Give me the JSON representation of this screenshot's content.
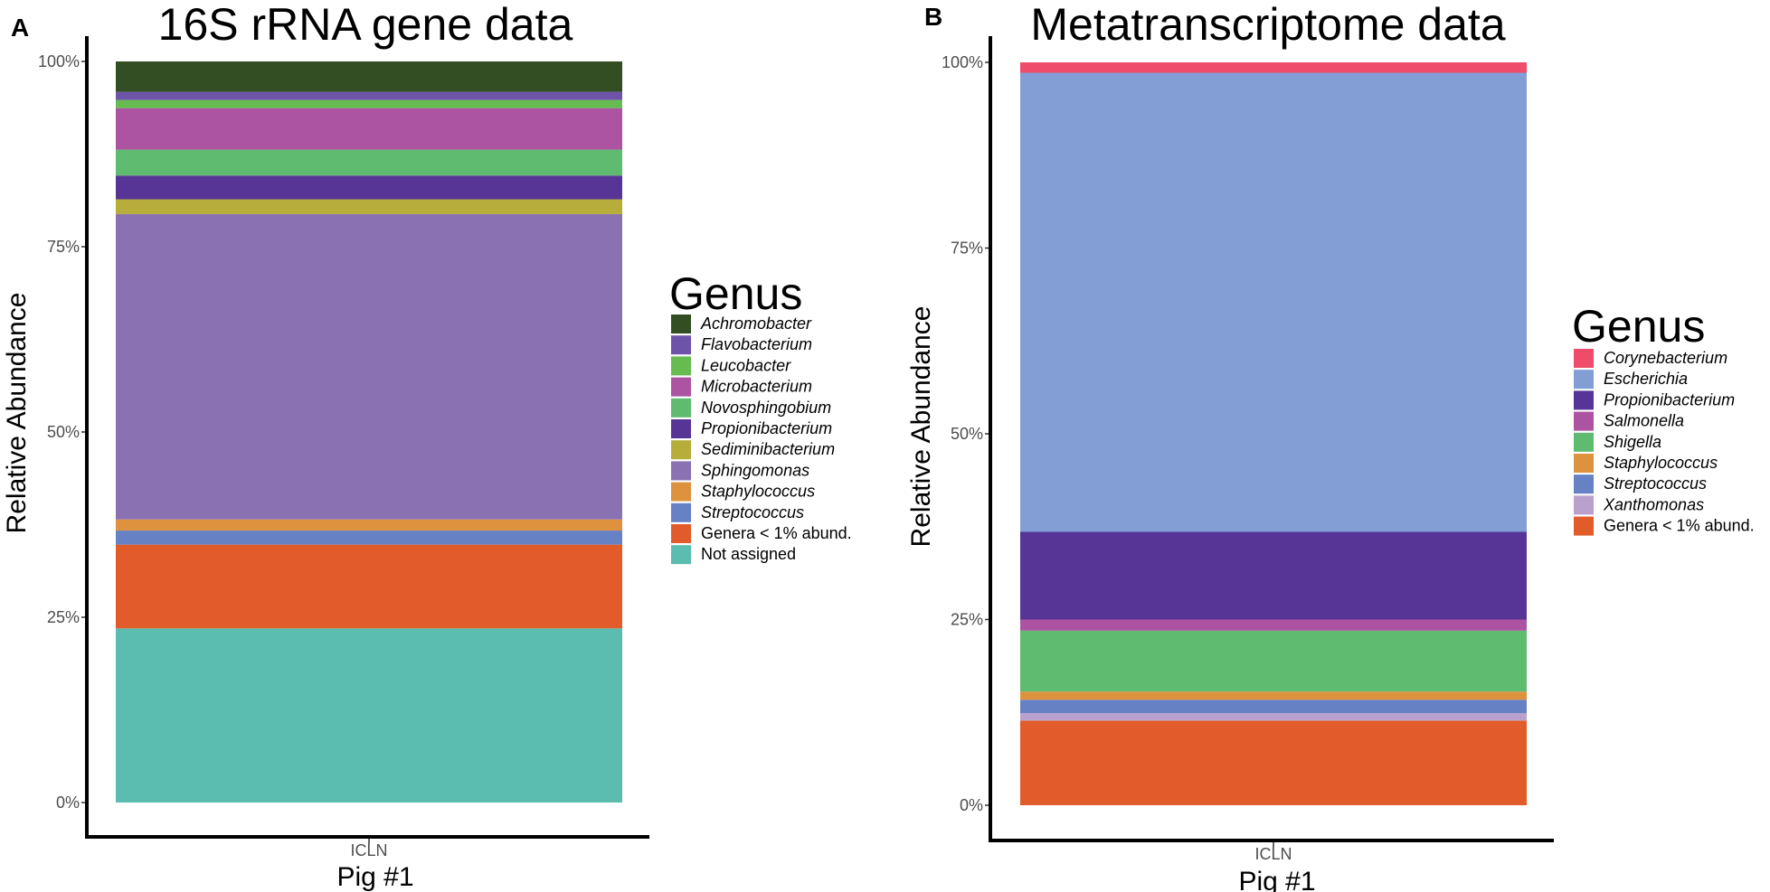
{
  "chart_data": [
    {
      "type": "bar",
      "stacked": true,
      "panel": "A",
      "title": "16S rRNA gene data",
      "xlabel": "Pig #1",
      "ylabel": "Relative Abundance",
      "categories": [
        "ICLN"
      ],
      "ylim": [
        0,
        100
      ],
      "yticks": [
        "0%",
        "25%",
        "50%",
        "75%",
        "100%"
      ],
      "legend_title": "Genus",
      "legend_position": "right",
      "series": [
        {
          "name": "Not assigned",
          "values": [
            23.5
          ],
          "color": "#5bbcb0",
          "italic": false
        },
        {
          "name": "Genera < 1% abund.",
          "values": [
            11.3
          ],
          "color": "#e15b2b",
          "italic": false
        },
        {
          "name": "Streptococcus",
          "values": [
            1.9
          ],
          "color": "#6681c4",
          "italic": true
        },
        {
          "name": "Staphylococcus",
          "values": [
            1.5
          ],
          "color": "#df923e",
          "italic": true
        },
        {
          "name": "Sphingomonas",
          "values": [
            41.2
          ],
          "color": "#8a72b2",
          "italic": true
        },
        {
          "name": "Sediminibacterium",
          "values": [
            2.0
          ],
          "color": "#b6ad3b",
          "italic": true
        },
        {
          "name": "Propionibacterium",
          "values": [
            3.2
          ],
          "color": "#573596",
          "italic": true
        },
        {
          "name": "Novosphingobium",
          "values": [
            3.5
          ],
          "color": "#5fbb6f",
          "italic": true
        },
        {
          "name": "Microbacterium",
          "values": [
            5.6
          ],
          "color": "#ac54a1",
          "italic": true
        },
        {
          "name": "Leucobacter",
          "values": [
            1.1
          ],
          "color": "#66bc51",
          "italic": true
        },
        {
          "name": "Flavobacterium",
          "values": [
            1.1
          ],
          "color": "#6e54a9",
          "italic": true
        },
        {
          "name": "Achromobacter",
          "values": [
            4.1
          ],
          "color": "#344e24",
          "italic": true
        }
      ],
      "legend_order": [
        "Achromobacter",
        "Flavobacterium",
        "Leucobacter",
        "Microbacterium",
        "Novosphingobium",
        "Propionibacterium",
        "Sediminibacterium",
        "Sphingomonas",
        "Staphylococcus",
        "Streptococcus",
        "Genera < 1% abund.",
        "Not assigned"
      ]
    },
    {
      "type": "bar",
      "stacked": true,
      "panel": "B",
      "title": "Metatranscriptome data",
      "xlabel": "Pig #1",
      "ylabel": "Relative Abundance",
      "categories": [
        "ICLN"
      ],
      "ylim": [
        0,
        100
      ],
      "yticks": [
        "0%",
        "25%",
        "50%",
        "75%",
        "100%"
      ],
      "legend_title": "Genus",
      "legend_position": "right",
      "series": [
        {
          "name": "Genera < 1% abund.",
          "values": [
            11.4
          ],
          "color": "#e15b2b",
          "italic": false
        },
        {
          "name": "Xanthomonas",
          "values": [
            1.0
          ],
          "color": "#b8a2cd",
          "italic": true
        },
        {
          "name": "Streptococcus",
          "values": [
            1.8
          ],
          "color": "#6681c4",
          "italic": true
        },
        {
          "name": "Staphylococcus",
          "values": [
            1.1
          ],
          "color": "#df923e",
          "italic": true
        },
        {
          "name": "Shigella",
          "values": [
            8.2
          ],
          "color": "#5fbb6f",
          "italic": true
        },
        {
          "name": "Salmonella",
          "values": [
            1.5
          ],
          "color": "#ac54a1",
          "italic": true
        },
        {
          "name": "Propionibacterium",
          "values": [
            11.8
          ],
          "color": "#573596",
          "italic": true
        },
        {
          "name": "Escherichia",
          "values": [
            61.8
          ],
          "color": "#839ed5",
          "italic": true
        },
        {
          "name": "Corynebacterium",
          "values": [
            1.4
          ],
          "color": "#ef4b6a",
          "italic": true
        }
      ],
      "legend_order": [
        "Corynebacterium",
        "Escherichia",
        "Propionibacterium",
        "Salmonella",
        "Shigella",
        "Staphylococcus",
        "Streptococcus",
        "Xanthomonas",
        "Genera < 1% abund."
      ]
    }
  ]
}
